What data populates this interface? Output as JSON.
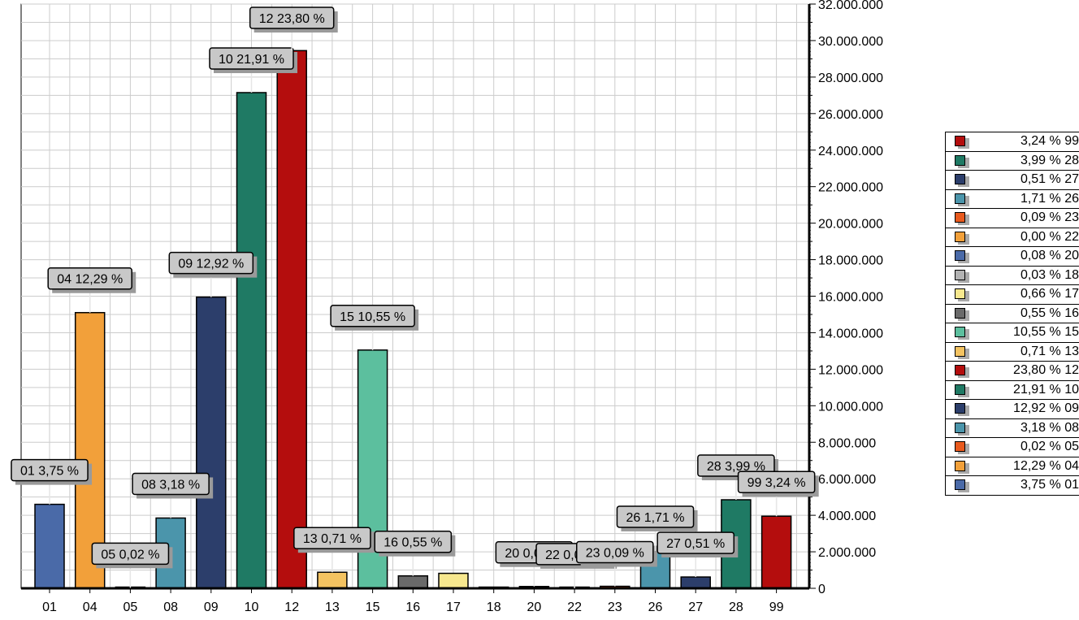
{
  "chart_data": {
    "type": "bar",
    "categories": [
      "01",
      "04",
      "05",
      "08",
      "09",
      "10",
      "12",
      "13",
      "15",
      "16",
      "17",
      "18",
      "20",
      "22",
      "23",
      "26",
      "27",
      "28",
      "99"
    ],
    "values": [
      4600000,
      15100000,
      30000,
      3850000,
      15950000,
      27150000,
      29450000,
      880000,
      13050000,
      680000,
      820000,
      30000,
      100000,
      4000,
      110000,
      2050000,
      620000,
      4850000,
      3950000
    ],
    "colors": [
      "#4a6aa8",
      "#f2a03a",
      "#e85a1e",
      "#4b95ab",
      "#2c3e6b",
      "#1f7a64",
      "#b40d0d",
      "#f4c361",
      "#5cbf9e",
      "#6a6a6a",
      "#f7e88e",
      "#b3b3b3",
      "#4a6aa8",
      "#f2a03a",
      "#e85a1e",
      "#4b95ab",
      "#2c3e6b",
      "#1f7a64",
      "#b40d0d"
    ],
    "data_labels": [
      "01 3,75 %",
      "04 12,29 %",
      "05 0,02 %",
      "08 3,18 %",
      "09 12,92 %",
      "10 21,91 %",
      "12 23,80 %",
      "13 0,71 %",
      "15 10,55 %",
      "16 0,55 %",
      "",
      "",
      "20 0,08 %",
      "22 0,00 %",
      "23 0,09 %",
      "26 1,71 %",
      "27 0,51 %",
      "28 3,99 %",
      "99 3,24 %"
    ],
    "ylim": [
      0,
      32000000
    ],
    "y_ticks": [
      "0",
      "2.000.000",
      "4.000.000",
      "6.000.000",
      "8.000.000",
      "10.000.000",
      "12.000.000",
      "14.000.000",
      "16.000.000",
      "18.000.000",
      "20.000.000",
      "22.000.000",
      "24.000.000",
      "26.000.000",
      "28.000.000",
      "30.000.000",
      "32.000.000"
    ],
    "y_axis_position": "right",
    "grid": true,
    "legend_position": "right",
    "legend": [
      {
        "label": "3,24 % 99",
        "color": "#b40d0d"
      },
      {
        "label": "3,99 % 28",
        "color": "#1f7a64"
      },
      {
        "label": "0,51 % 27",
        "color": "#2c3e6b"
      },
      {
        "label": "1,71 % 26",
        "color": "#4b95ab"
      },
      {
        "label": "0,09 % 23",
        "color": "#e85a1e"
      },
      {
        "label": "0,00 % 22",
        "color": "#f2a03a"
      },
      {
        "label": "0,08 % 20",
        "color": "#4a6aa8"
      },
      {
        "label": "0,03 % 18",
        "color": "#b3b3b3"
      },
      {
        "label": "0,66 % 17",
        "color": "#f7e88e"
      },
      {
        "label": "0,55 % 16",
        "color": "#6a6a6a"
      },
      {
        "label": "10,55 % 15",
        "color": "#5cbf9e"
      },
      {
        "label": "0,71 % 13",
        "color": "#f4c361"
      },
      {
        "label": "23,80 % 12",
        "color": "#b40d0d"
      },
      {
        "label": "21,91 % 10",
        "color": "#1f7a64"
      },
      {
        "label": "12,92 % 09",
        "color": "#2c3e6b"
      },
      {
        "label": "3,18 % 08",
        "color": "#4b95ab"
      },
      {
        "label": "0,02 % 05",
        "color": "#e85a1e"
      },
      {
        "label": "12,29 % 04",
        "color": "#f2a03a"
      },
      {
        "label": "3,75 % 01",
        "color": "#4a6aa8"
      }
    ]
  }
}
